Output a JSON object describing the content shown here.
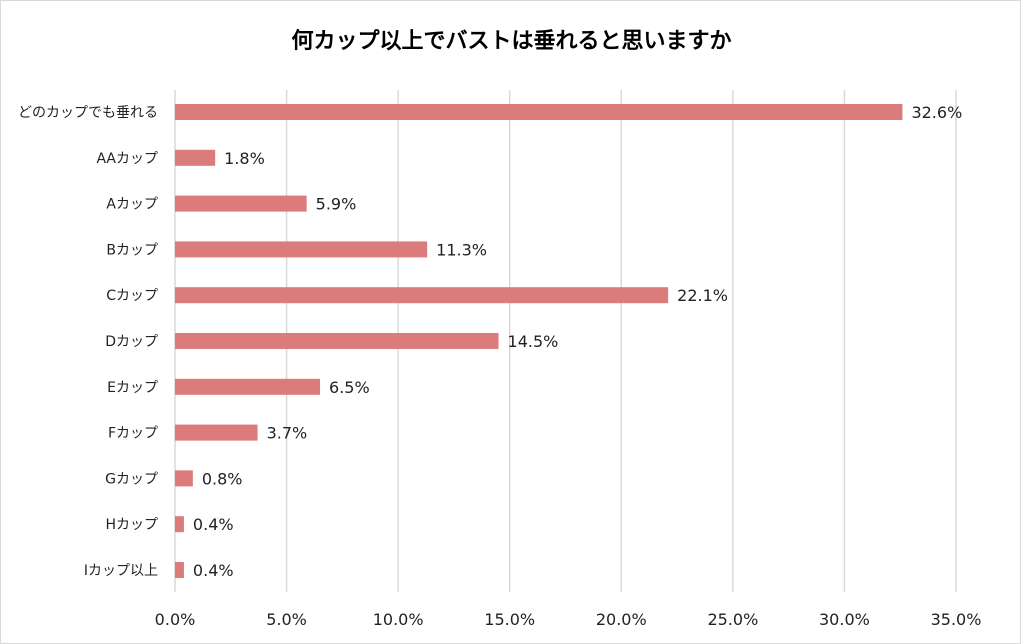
{
  "chart_data": {
    "type": "bar",
    "orientation": "horizontal",
    "title": "何カップ以上でバストは垂れると思いますか",
    "categories": [
      "どのカップでも垂れる",
      "AAカップ",
      "Aカップ",
      "Bカップ",
      "Cカップ",
      "Dカップ",
      "Eカップ",
      "Fカップ",
      "Gカップ",
      "Hカップ",
      "Iカップ以上"
    ],
    "values": [
      32.6,
      1.8,
      5.9,
      11.3,
      22.1,
      14.5,
      6.5,
      3.7,
      0.8,
      0.4,
      0.4
    ],
    "value_labels": [
      "32.6%",
      "1.8%",
      "5.9%",
      "11.3%",
      "22.1%",
      "14.5%",
      "6.5%",
      "3.7%",
      "0.8%",
      "0.4%",
      "0.4%"
    ],
    "xlim": [
      0,
      35
    ],
    "xticks": [
      0,
      5,
      10,
      15,
      20,
      25,
      30,
      35
    ],
    "xtick_labels": [
      "0.0%",
      "5.0%",
      "10.0%",
      "15.0%",
      "20.0%",
      "25.0%",
      "30.0%",
      "35.0%"
    ],
    "grid": "vertical",
    "legend": "none",
    "bar_color": "#db7b7b",
    "grid_color": "#d9d9d9"
  }
}
